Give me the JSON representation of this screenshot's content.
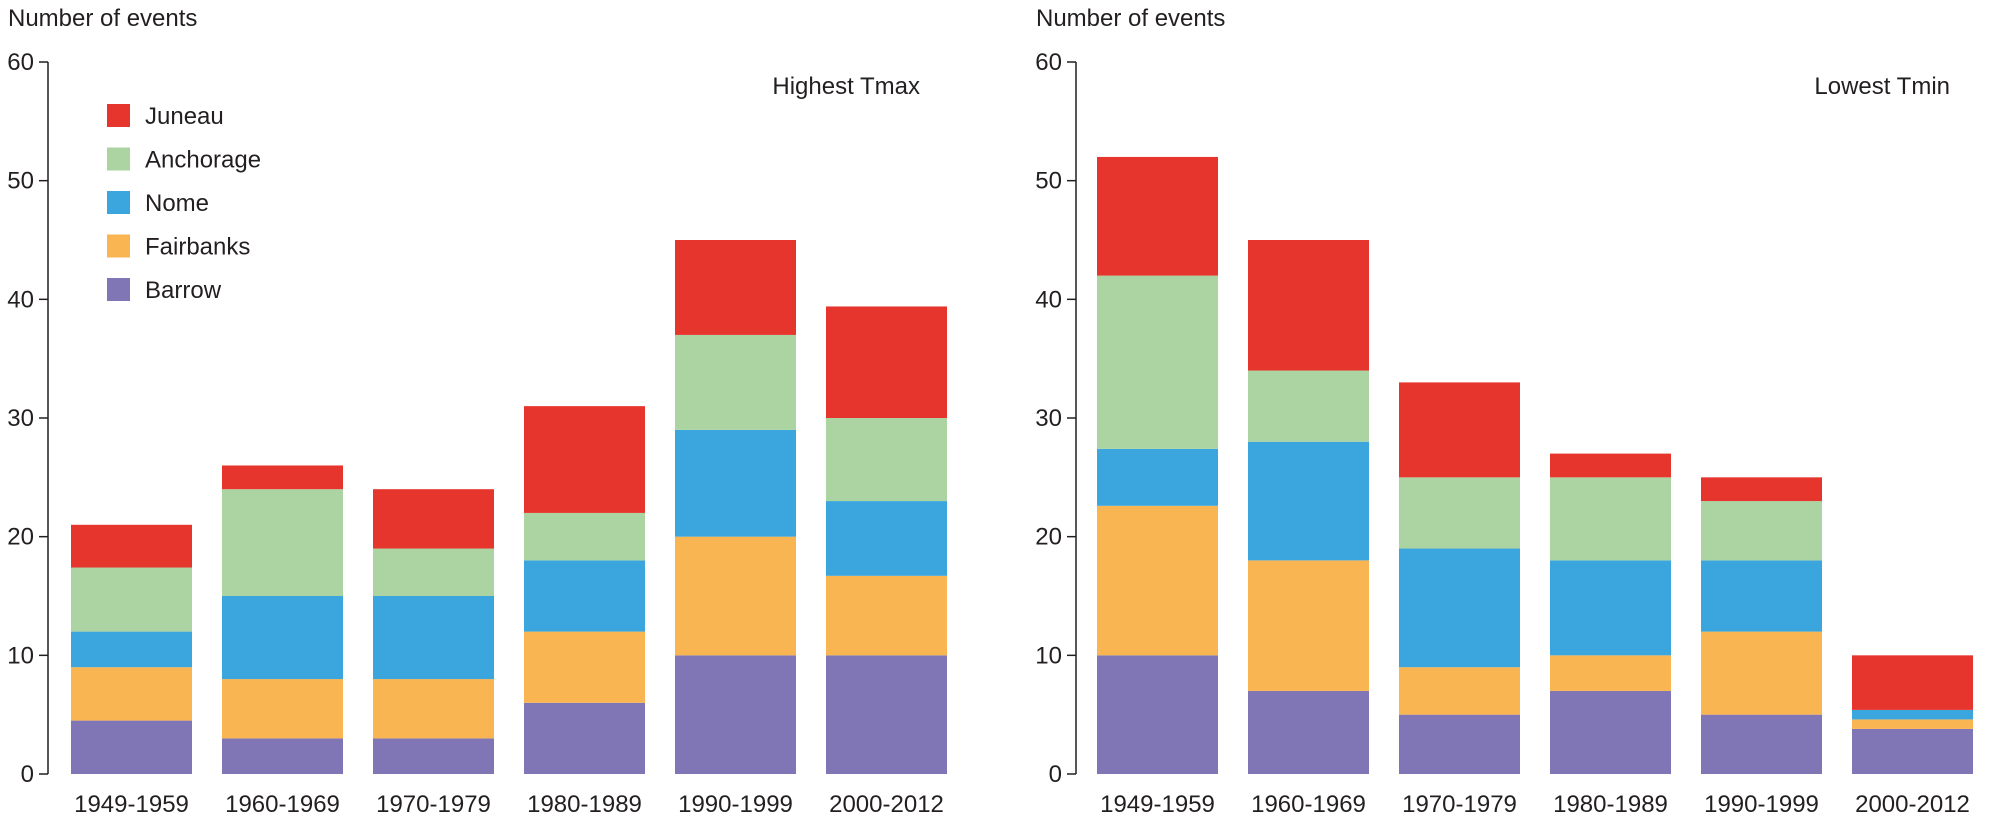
{
  "chart_data": [
    {
      "type": "bar",
      "stacked": true,
      "title": "Highest Tmax",
      "ylabel": "Number of events",
      "xlabel": "",
      "ylim": [
        0,
        60
      ],
      "yticks": [
        0,
        10,
        20,
        30,
        40,
        50,
        60
      ],
      "categories": [
        "1949-1959",
        "1960-1969",
        "1970-1979",
        "1980-1989",
        "1990-1999",
        "2000-2012"
      ],
      "legend_position": "top-left",
      "series": [
        {
          "name": "Barrow",
          "color": "#8075b5",
          "values": [
            4.5,
            3,
            3,
            6,
            10,
            10
          ]
        },
        {
          "name": "Fairbanks",
          "color": "#f9b552",
          "values": [
            4.5,
            5,
            5,
            6,
            10,
            6.7
          ]
        },
        {
          "name": "Nome",
          "color": "#3ba6de",
          "values": [
            3,
            7,
            7,
            6,
            9,
            6.3
          ]
        },
        {
          "name": "Anchorage",
          "color": "#acd3a2",
          "values": [
            5.4,
            9,
            4,
            4,
            8,
            7
          ]
        },
        {
          "name": "Juneau",
          "color": "#e5352d",
          "values": [
            3.6,
            2,
            5,
            9,
            8,
            9.4
          ]
        }
      ]
    },
    {
      "type": "bar",
      "stacked": true,
      "title": "Lowest Tmin",
      "ylabel": "Number of events",
      "xlabel": "",
      "ylim": [
        0,
        60
      ],
      "yticks": [
        0,
        10,
        20,
        30,
        40,
        50,
        60
      ],
      "categories": [
        "1949-1959",
        "1960-1969",
        "1970-1979",
        "1980-1989",
        "1990-1999",
        "2000-2012"
      ],
      "series": [
        {
          "name": "Barrow",
          "color": "#8075b5",
          "values": [
            10,
            7,
            5,
            7,
            5,
            3.8
          ]
        },
        {
          "name": "Fairbanks",
          "color": "#f9b552",
          "values": [
            12.6,
            11,
            4,
            3,
            7,
            0.8
          ]
        },
        {
          "name": "Nome",
          "color": "#3ba6de",
          "values": [
            4.8,
            10,
            10,
            8,
            6,
            0.8
          ]
        },
        {
          "name": "Anchorage",
          "color": "#acd3a2",
          "values": [
            14.6,
            6,
            6,
            7,
            5,
            0
          ]
        },
        {
          "name": "Juneau",
          "color": "#e5352d",
          "values": [
            10,
            11,
            8,
            2,
            2,
            4.6
          ]
        }
      ]
    }
  ]
}
